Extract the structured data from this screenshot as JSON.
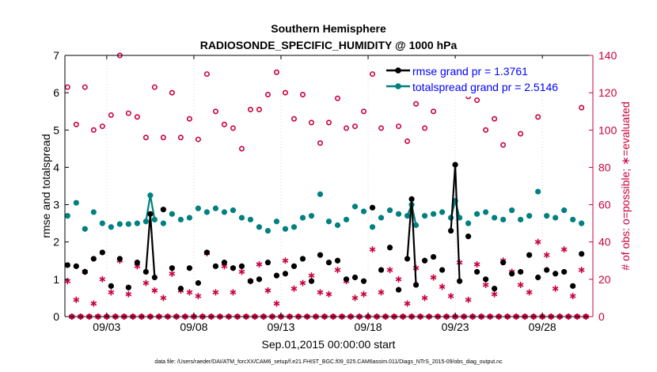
{
  "chart_data": {
    "type": "line",
    "title": "Southern Hemisphere",
    "subtitle": "RADIOSONDE_SPECIFIC_HUMIDITY @ 1000 hPa",
    "xlabel": "Sep.01,2015 00:00:00 start",
    "ylabel_left": "rmse and totalspread",
    "ylabel_right": "# of obs: o=possible; ∗=evaluated",
    "footnote": "data file: /Users/raeder/DAI/ATM_forcXX/CAM6_setup/f.e21.FHIST_BGC.f09_025.CAM6assim.011/Diags_NTrS_2015-09/obs_diag_output.nc",
    "xlim": [
      0.6,
      30.9
    ],
    "x_ticks": [
      3,
      8,
      13,
      18,
      23,
      28
    ],
    "x_tick_labels": [
      "09/03",
      "09/08",
      "09/13",
      "09/18",
      "09/23",
      "09/28"
    ],
    "ylim_left": [
      0,
      7
    ],
    "yticks_left": [
      0,
      1,
      2,
      3,
      4,
      5,
      6,
      7
    ],
    "ylim_right": [
      0,
      140
    ],
    "yticks_right": [
      0,
      20,
      40,
      60,
      80,
      100,
      120,
      140
    ],
    "colors": {
      "rmse": "#000000",
      "spread": "#008080",
      "obs": "#c8003c",
      "axis_right": "#c8003c",
      "legend_text": "#0000ff"
    },
    "series": [
      {
        "name": "rmse grand pr = 1.3761",
        "axis": "left",
        "x": [
          0.75,
          1.25,
          1.75,
          2.25,
          2.75,
          3.25,
          3.75,
          4.25,
          4.75,
          5.25,
          5.5,
          5.75,
          6.25,
          6.75,
          7.25,
          7.75,
          8.25,
          8.75,
          9.25,
          9.75,
          10.25,
          10.75,
          11.25,
          11.75,
          12.25,
          12.75,
          13.25,
          13.75,
          14.25,
          14.75,
          15.25,
          15.75,
          16.25,
          16.75,
          17.25,
          17.75,
          18.25,
          18.75,
          19.25,
          19.75,
          20.25,
          20.5,
          20.75,
          21.25,
          21.75,
          22.25,
          22.75,
          23.0,
          23.25,
          23.75,
          24.25,
          24.75,
          25.25,
          25.75,
          26.25,
          26.75,
          27.25,
          27.75,
          28.25,
          28.75,
          29.25,
          29.75,
          30.25
        ],
        "values": [
          1.38,
          1.35,
          1.2,
          1.55,
          1.72,
          0.82,
          1.55,
          0.78,
          1.45,
          1.2,
          2.75,
          1.05,
          2.87,
          1.3,
          0.75,
          1.3,
          0.9,
          1.72,
          1.35,
          1.45,
          1.3,
          1.35,
          0.95,
          1.0,
          1.45,
          1.1,
          1.15,
          1.35,
          1.55,
          0.95,
          1.65,
          1.45,
          1.5,
          1.0,
          1.05,
          0.95,
          2.92,
          1.25,
          1.85,
          0.72,
          1.55,
          3.15,
          0.85,
          1.5,
          1.6,
          1.25,
          2.3,
          4.07,
          0.95,
          2.15,
          1.2,
          1.0,
          0.75,
          1.45,
          1.15,
          1.2,
          1.65,
          1.05,
          1.25,
          1.15,
          1.2,
          0.82,
          1.68
        ]
      },
      {
        "name": "totalspread grand pr = 2.5146",
        "axis": "left",
        "x": [
          0.75,
          1.25,
          1.75,
          2.25,
          2.75,
          3.25,
          3.75,
          4.25,
          4.75,
          5.25,
          5.5,
          5.75,
          6.25,
          6.75,
          7.25,
          7.75,
          8.25,
          8.75,
          9.25,
          9.75,
          10.25,
          10.75,
          11.25,
          11.75,
          12.25,
          12.75,
          13.25,
          13.75,
          14.25,
          14.75,
          15.25,
          15.75,
          16.25,
          16.75,
          17.25,
          17.75,
          18.25,
          18.75,
          19.25,
          19.75,
          20.25,
          20.5,
          20.75,
          21.25,
          21.75,
          22.25,
          22.75,
          23.0,
          23.25,
          23.75,
          24.25,
          24.75,
          25.25,
          25.75,
          26.25,
          26.75,
          27.25,
          27.75,
          28.25,
          28.75,
          29.25,
          29.75,
          30.25
        ],
        "values": [
          2.7,
          3.05,
          2.35,
          2.8,
          2.5,
          2.4,
          2.48,
          2.48,
          2.5,
          2.55,
          3.25,
          2.6,
          2.5,
          2.75,
          2.6,
          2.65,
          2.9,
          2.8,
          2.9,
          2.8,
          2.85,
          2.65,
          2.6,
          2.4,
          2.3,
          2.55,
          2.35,
          2.4,
          2.65,
          2.7,
          3.28,
          2.55,
          2.45,
          2.6,
          2.95,
          2.82,
          2.4,
          2.65,
          2.85,
          2.75,
          2.7,
          3.0,
          2.45,
          2.7,
          2.75,
          2.8,
          2.65,
          3.1,
          2.65,
          2.5,
          2.75,
          2.8,
          2.65,
          2.6,
          2.85,
          2.6,
          2.7,
          3.35,
          2.7,
          2.65,
          2.85,
          2.6,
          2.5
        ]
      },
      {
        "name": "obs possible",
        "axis": "right",
        "marker": "circle",
        "x": [
          0.75,
          1.25,
          1.75,
          2.25,
          2.75,
          3.25,
          3.75,
          4.25,
          4.75,
          5.25,
          5.75,
          6.25,
          6.75,
          7.25,
          7.75,
          8.25,
          8.75,
          9.25,
          9.75,
          10.25,
          10.75,
          11.25,
          11.75,
          12.25,
          12.75,
          13.25,
          13.75,
          14.25,
          14.75,
          15.25,
          15.75,
          16.25,
          16.75,
          17.25,
          17.75,
          18.25,
          18.75,
          19.25,
          19.75,
          20.25,
          20.75,
          21.25,
          21.75,
          22.25,
          22.75,
          23.25,
          23.75,
          24.25,
          24.75,
          25.25,
          25.75,
          26.25,
          26.75,
          27.25,
          27.75,
          28.25,
          28.75,
          29.25,
          29.75,
          30.25
        ],
        "values": [
          123,
          103,
          123,
          100,
          102,
          108,
          140,
          109,
          107,
          96,
          123,
          96,
          120,
          96,
          106,
          95,
          130,
          110,
          103,
          101,
          90,
          111,
          111,
          119,
          131,
          120,
          106,
          119,
          104,
          93,
          104,
          117,
          101,
          102,
          110,
          130,
          101,
          127,
          102,
          94,
          114,
          101,
          110,
          124,
          136,
          128,
          118,
          116,
          100,
          106,
          92,
          124,
          98,
          121,
          107,
          132,
          123,
          130,
          123,
          112
        ]
      },
      {
        "name": "obs evaluated",
        "axis": "right",
        "marker": "asterisk",
        "x": [
          0.75,
          1.25,
          1.75,
          2.25,
          2.75,
          3.25,
          3.75,
          4.25,
          4.75,
          5.25,
          5.75,
          6.25,
          6.75,
          7.25,
          7.75,
          8.25,
          8.75,
          9.25,
          9.75,
          10.25,
          10.75,
          11.25,
          11.75,
          12.25,
          12.75,
          13.25,
          13.75,
          14.25,
          14.75,
          15.25,
          15.75,
          16.25,
          16.75,
          17.25,
          17.75,
          18.25,
          18.75,
          19.25,
          19.75,
          20.25,
          20.75,
          21.25,
          21.75,
          22.25,
          22.75,
          23.25,
          23.75,
          24.25,
          24.75,
          25.25,
          25.75,
          26.25,
          26.75,
          27.25,
          27.75,
          28.25,
          28.75,
          29.25,
          29.75,
          30.25
        ],
        "values": [
          19,
          9,
          24,
          7,
          20,
          13,
          30,
          12,
          27,
          18,
          14,
          10,
          23,
          14,
          13,
          11,
          34,
          13,
          27,
          13,
          24,
          19,
          28,
          14,
          7,
          30,
          15,
          18,
          22,
          13,
          12,
          25,
          19,
          10,
          12,
          36,
          13,
          25,
          20,
          7,
          26,
          10,
          21,
          16,
          11,
          29,
          9,
          28,
          17,
          12,
          30,
          24,
          17,
          13,
          40,
          33,
          15,
          36,
          11,
          25
        ]
      }
    ]
  }
}
